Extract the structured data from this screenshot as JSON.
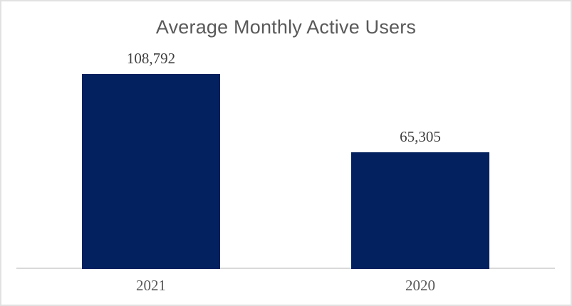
{
  "colors": {
    "background": "#ffffff",
    "canvas_border": "#e1e1e1",
    "bar_fill": "#02215e",
    "title_text": "#595959",
    "value_label_text": "#3f3f3f",
    "axis_label_text": "#595959",
    "axis_line": "#d9d9d9"
  },
  "chart_data": {
    "type": "bar",
    "title": "Average Monthly Active Users",
    "categories": [
      "2021",
      "2020"
    ],
    "values": [
      108792,
      65305
    ],
    "value_labels": [
      "108,792",
      "65,305"
    ],
    "xlabel": "",
    "ylabel": "",
    "grid": false,
    "legend": false,
    "orientation": "vertical",
    "baseline": 0
  }
}
